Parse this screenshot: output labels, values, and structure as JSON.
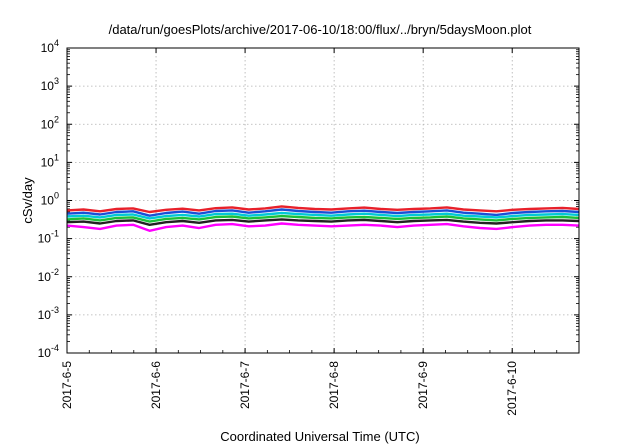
{
  "chart_data": {
    "type": "line",
    "title": "/data/run/goesPlots/archive/2017-06-10/18:00/flux/../bryn/5daysMoon.plot",
    "xlabel": "Coordinated Universal Time (UTC)",
    "ylabel": "cSv/day",
    "y_scale": "log",
    "ylim": [
      0.0001,
      10000
    ],
    "xlim": [
      "2017-06-05T00:00",
      "2017-06-10T18:00"
    ],
    "y_ticks": [
      {
        "mantissa": "10",
        "exp": "-4"
      },
      {
        "mantissa": "10",
        "exp": "-3"
      },
      {
        "mantissa": "10",
        "exp": "-2"
      },
      {
        "mantissa": "10",
        "exp": "-1"
      },
      {
        "mantissa": "10",
        "exp": "0"
      },
      {
        "mantissa": "10",
        "exp": "1"
      },
      {
        "mantissa": "10",
        "exp": "2"
      },
      {
        "mantissa": "10",
        "exp": "3"
      },
      {
        "mantissa": "10",
        "exp": "4"
      }
    ],
    "x_ticks": [
      "2017-6-5",
      "2017-6-6",
      "2017-6-7",
      "2017-6-8",
      "2017-6-9",
      "2017-6-10"
    ],
    "grid": true,
    "legend": "none",
    "series": [
      {
        "color": "#e8212b",
        "values": [
          0.55,
          0.58,
          0.52,
          0.6,
          0.62,
          0.5,
          0.57,
          0.61,
          0.55,
          0.63,
          0.66,
          0.58,
          0.62,
          0.7,
          0.64,
          0.6,
          0.58,
          0.62,
          0.65,
          0.6,
          0.57,
          0.6,
          0.62,
          0.66,
          0.58,
          0.55,
          0.52,
          0.57,
          0.6,
          0.62,
          0.64,
          0.6
        ]
      },
      {
        "color": "#1a4fd6",
        "values": [
          0.45,
          0.48,
          0.43,
          0.5,
          0.52,
          0.4,
          0.47,
          0.51,
          0.45,
          0.53,
          0.55,
          0.48,
          0.52,
          0.58,
          0.53,
          0.5,
          0.48,
          0.52,
          0.54,
          0.5,
          0.47,
          0.5,
          0.52,
          0.55,
          0.48,
          0.45,
          0.42,
          0.47,
          0.5,
          0.52,
          0.53,
          0.5
        ]
      },
      {
        "color": "#00c8d6",
        "values": [
          0.38,
          0.4,
          0.36,
          0.42,
          0.43,
          0.34,
          0.39,
          0.42,
          0.38,
          0.44,
          0.45,
          0.4,
          0.43,
          0.47,
          0.44,
          0.42,
          0.4,
          0.43,
          0.45,
          0.42,
          0.39,
          0.42,
          0.43,
          0.45,
          0.4,
          0.38,
          0.36,
          0.39,
          0.42,
          0.43,
          0.44,
          0.42
        ]
      },
      {
        "color": "#1bbf3a",
        "values": [
          0.32,
          0.34,
          0.3,
          0.35,
          0.36,
          0.28,
          0.33,
          0.35,
          0.32,
          0.37,
          0.38,
          0.34,
          0.36,
          0.39,
          0.37,
          0.35,
          0.34,
          0.36,
          0.37,
          0.35,
          0.33,
          0.35,
          0.36,
          0.38,
          0.34,
          0.32,
          0.3,
          0.33,
          0.35,
          0.36,
          0.37,
          0.35
        ]
      },
      {
        "color": "#222222",
        "values": [
          0.27,
          0.28,
          0.25,
          0.29,
          0.3,
          0.23,
          0.27,
          0.29,
          0.26,
          0.3,
          0.31,
          0.28,
          0.3,
          0.32,
          0.3,
          0.29,
          0.28,
          0.3,
          0.31,
          0.29,
          0.27,
          0.29,
          0.3,
          0.31,
          0.28,
          0.26,
          0.25,
          0.27,
          0.29,
          0.3,
          0.3,
          0.29
        ]
      },
      {
        "color": "#ff00ff",
        "values": [
          0.22,
          0.2,
          0.18,
          0.22,
          0.23,
          0.16,
          0.2,
          0.22,
          0.19,
          0.23,
          0.24,
          0.21,
          0.22,
          0.25,
          0.23,
          0.22,
          0.21,
          0.22,
          0.23,
          0.22,
          0.2,
          0.22,
          0.23,
          0.24,
          0.21,
          0.19,
          0.18,
          0.2,
          0.22,
          0.23,
          0.23,
          0.22
        ]
      }
    ]
  }
}
